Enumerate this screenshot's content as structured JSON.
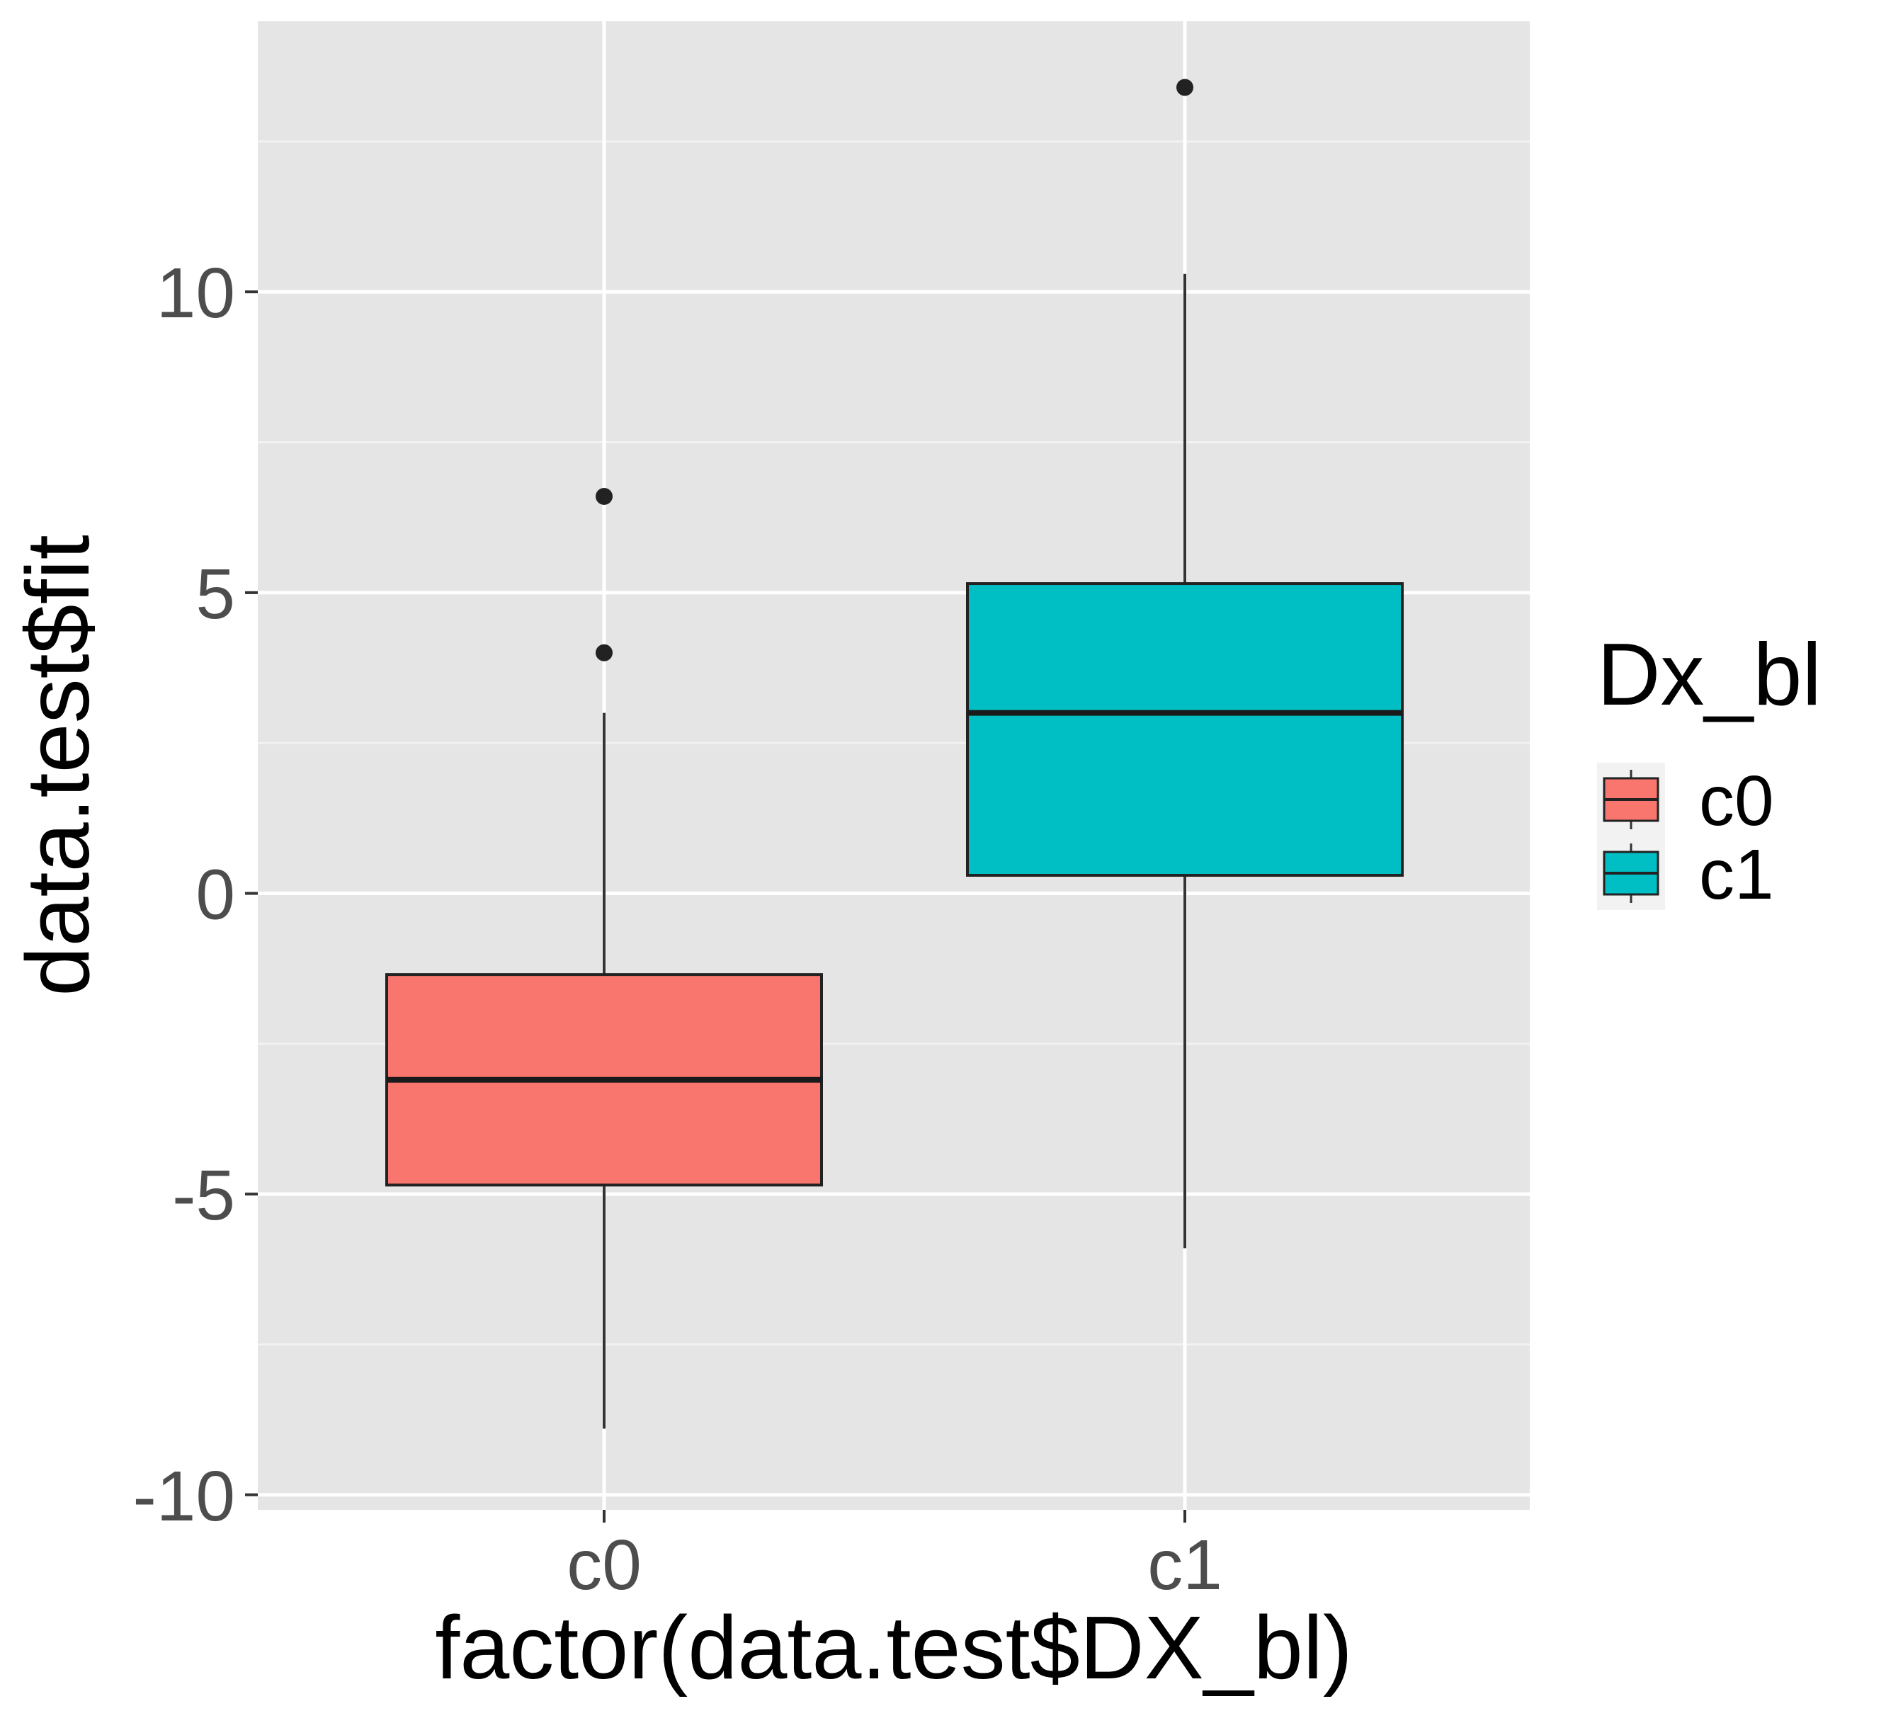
{
  "chart_data": {
    "type": "boxplot",
    "xlabel": "factor(data.test$DX_bl)",
    "ylabel": "data.test$fit",
    "ylim": [
      -10,
      14.5
    ],
    "y_ticks": [
      -10,
      -5,
      0,
      5,
      10
    ],
    "y_tick_labels": [
      "-10",
      "-5",
      "0",
      "5",
      "10"
    ],
    "categories": [
      "c0",
      "c1"
    ],
    "boxes": [
      {
        "name": "c0",
        "color": "#F8766D",
        "whisker_low": -8.9,
        "q1": -4.85,
        "median": -3.1,
        "q3": -1.35,
        "whisker_high": 3.0,
        "outliers": [
          4.0,
          6.6
        ]
      },
      {
        "name": "c1",
        "color": "#00BFC4",
        "whisker_low": -5.9,
        "q1": 0.3,
        "median": 3.0,
        "q3": 5.15,
        "whisker_high": 10.3,
        "outliers": [
          13.4
        ]
      }
    ],
    "legend": {
      "title": "Dx_bl",
      "position": "right",
      "entries": [
        {
          "label": "c0",
          "color": "#F8766D"
        },
        {
          "label": "c1",
          "color": "#00BFC4"
        }
      ]
    },
    "grid": true,
    "panel_background": "#E5E5E5"
  }
}
